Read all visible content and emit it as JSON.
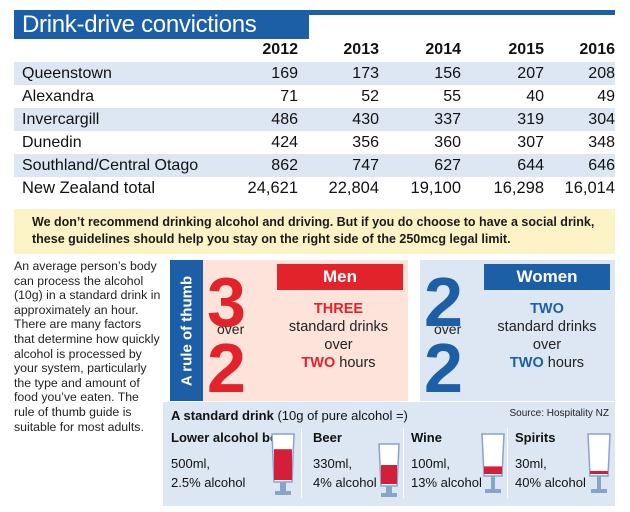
{
  "title": "Drink-drive convictions",
  "table": {
    "years": [
      "2012",
      "2013",
      "2014",
      "2015",
      "2016"
    ],
    "rows": [
      {
        "name": "Queenstown",
        "values": [
          "169",
          "173",
          "156",
          "207",
          "208"
        ]
      },
      {
        "name": "Alexandra",
        "values": [
          "71",
          "52",
          "55",
          "40",
          "49"
        ]
      },
      {
        "name": "Invercargill",
        "values": [
          "486",
          "430",
          "337",
          "319",
          "304"
        ]
      },
      {
        "name": "Dunedin",
        "values": [
          "424",
          "356",
          "360",
          "307",
          "348"
        ]
      },
      {
        "name": "Southland/Central Otago",
        "values": [
          "862",
          "747",
          "627",
          "644",
          "646"
        ]
      },
      {
        "name": "New Zealand total",
        "values": [
          "24,621",
          "22,804",
          "19,100",
          "16,298",
          "16,014"
        ]
      }
    ]
  },
  "advice": "We don’t recommend drinking alcohol and driving. But if you do choose to have a social drink, these guidelines should help you stay on the right side of the 250mcg legal limit.",
  "sidebar_text": "An average person’s body can process the alcohol (10g) in a standard drink in approximately an hour. There are many factors that determine how quickly alcohol is processed by your system, particularly the type and amount of food you’ve eaten. The rule of thumb guide is suitable for most adults.",
  "rule_label": "A rule of thumb",
  "men": {
    "header": "Men",
    "big_top": "3",
    "over": "over",
    "big_bottom": "2",
    "line1": "THREE",
    "line2": "standard drinks",
    "line3": "over",
    "line4_hl": "TWO",
    "line4_rest": " hours"
  },
  "women": {
    "header": "Women",
    "big_top": "2",
    "over": "over",
    "big_bottom": "2",
    "line1": "TWO",
    "line2": "standard drinks",
    "line3": "over",
    "line4_hl": "TWO",
    "line4_rest": " hours"
  },
  "standard_drink": {
    "title_bold": "A standard drink",
    "title_rest": " (10g of pure alcohol =)",
    "source": "Source: Hospitality NZ",
    "drinks": [
      {
        "name": "Lower alcohol beer",
        "volume": "500ml,",
        "abv": "2.5% alcohol",
        "fill": 0.7
      },
      {
        "name": "Beer",
        "volume": "330ml,",
        "abv": "4% alcohol",
        "fill": 0.5
      },
      {
        "name": "Wine",
        "volume": "100ml,",
        "abv": "13% alcohol",
        "fill": 0.2
      },
      {
        "name": "Spirits",
        "volume": "30ml,",
        "abv": "40% alcohol",
        "fill": 0.08
      }
    ]
  },
  "colors": {
    "blue": "#1d5fa6",
    "red": "#e3232b",
    "light_blue": "#dde7f4",
    "pink": "#fde3d9",
    "cream": "#fbf3c6"
  }
}
